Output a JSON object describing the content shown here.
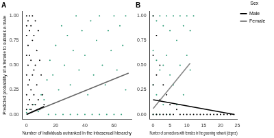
{
  "chart_data": [
    {
      "type": "scatter",
      "title": "A",
      "x_label": "Number of individuals outranked in the intrasexual hierarchy",
      "y_label": "Predicted probability of a female to outrank a male",
      "xlim": [
        -3,
        72
      ],
      "xticks": [
        0,
        20,
        40,
        60
      ],
      "ylim": [
        -0.05,
        1.05
      ],
      "yticks": [
        {
          "value": 0,
          "label": "0.00"
        },
        {
          "value": 0.25,
          "label": "0.25"
        },
        {
          "value": 0.5,
          "label": "0.50"
        },
        {
          "value": 0.75,
          "label": "0.75"
        },
        {
          "value": 1,
          "label": "1.00"
        }
      ],
      "grid": false,
      "series": [
        {
          "name": "Male",
          "type": "scatter",
          "marker": "circle",
          "color": "#000000",
          "x": [
            0,
            0,
            0,
            0,
            0,
            0,
            0,
            1,
            1,
            1,
            1,
            1,
            2,
            2,
            2,
            2,
            2,
            3,
            3,
            3,
            3,
            4,
            4,
            4,
            4,
            5,
            5,
            5,
            6,
            6,
            6,
            7,
            7,
            8,
            8,
            9,
            9,
            10,
            11,
            12
          ],
          "values": [
            1,
            0.9,
            0.8,
            0.6,
            0.4,
            0.2,
            0.05,
            0.95,
            0.7,
            0.5,
            0.3,
            0.1,
            1,
            0.85,
            0.6,
            0.35,
            0.15,
            0.9,
            0.55,
            0.25,
            0.05,
            1,
            0.75,
            0.4,
            0.1,
            0.8,
            0.45,
            0.2,
            0.95,
            0.5,
            0.1,
            0.65,
            0.3,
            0.85,
            0.15,
            0.55,
            0.05,
            0.4,
            0.2,
            0.1
          ]
        },
        {
          "name": "Female",
          "type": "scatter",
          "marker": "circle",
          "color": "#2e9e78",
          "x": [
            0,
            2,
            5,
            8,
            10,
            12,
            14,
            15,
            16,
            18,
            20,
            20,
            22,
            24,
            25,
            26,
            28,
            30,
            30,
            32,
            34,
            35,
            36,
            38,
            40,
            40,
            42,
            44,
            45,
            46,
            48,
            50,
            50,
            52,
            54,
            55,
            56,
            58,
            60,
            60,
            62,
            64,
            65,
            66,
            68,
            68
          ],
          "values": [
            0.02,
            0.05,
            0.1,
            0.03,
            0.2,
            0.15,
            0.35,
            0,
            0.55,
            0.4,
            0,
            0.7,
            0.25,
            0.9,
            0,
            0.5,
            0.8,
            0,
            0.3,
            0.65,
            1,
            0,
            0.45,
            0.85,
            0,
            0.6,
            0.2,
            0.95,
            0,
            0.4,
            0.75,
            0,
            1,
            0.5,
            0.3,
            0,
            0.85,
            0.65,
            0,
            1,
            0.45,
            0.9,
            0,
            0.7,
            0.25,
            1
          ]
        },
        {
          "name": "Male",
          "type": "line",
          "line_style": "solid",
          "color": "#000000",
          "x": [
            0,
            12
          ],
          "values": [
            0.0,
            0.08
          ]
        },
        {
          "name": "Female",
          "type": "line",
          "line_style": "solid",
          "color": "#666666",
          "x": [
            0,
            70
          ],
          "values": [
            0.0,
            0.42
          ]
        }
      ]
    },
    {
      "type": "scatter",
      "title": "B",
      "x_label": "Number of connections with females in the grooming network (degree)",
      "xlim": [
        -1,
        25
      ],
      "xticks": [
        0,
        5,
        10,
        15,
        20,
        25
      ],
      "ylim": [
        -0.05,
        1.05
      ],
      "yticks": [
        {
          "value": 0,
          "label": "0.00"
        },
        {
          "value": 0.25,
          "label": "0.25"
        },
        {
          "value": 0.5,
          "label": "0.50"
        },
        {
          "value": 0.75,
          "label": "0.75"
        },
        {
          "value": 1,
          "label": "1.00"
        }
      ],
      "grid": false,
      "legend": "right",
      "legend_title": "Sex",
      "series": [
        {
          "name": "Male",
          "type": "scatter",
          "marker": "circle",
          "color": "#000000",
          "x": [
            0,
            0,
            0,
            0,
            1,
            1,
            1,
            2,
            2,
            2,
            3,
            3,
            4,
            4,
            5,
            5,
            6,
            7,
            8,
            9,
            10,
            11,
            12,
            13,
            14,
            15,
            16,
            17,
            18,
            19,
            20,
            21,
            22,
            23,
            24
          ],
          "values": [
            1,
            0.6,
            0.3,
            0,
            0.8,
            0.4,
            0,
            0.5,
            0.15,
            0,
            0.3,
            0,
            0.2,
            0,
            0.1,
            0,
            0,
            0.05,
            0,
            0,
            0,
            0,
            0,
            0,
            0,
            0,
            0,
            0,
            0,
            0,
            0,
            0,
            0,
            0,
            0
          ]
        },
        {
          "name": "Female",
          "type": "scatter",
          "marker": "circle",
          "color": "#2e9e78",
          "x": [
            0,
            0,
            0,
            0,
            1,
            1,
            1,
            1,
            2,
            2,
            2,
            3,
            3,
            3,
            4,
            4,
            4,
            5,
            5,
            5,
            6,
            6,
            7,
            7,
            8,
            8,
            9,
            9,
            10,
            10,
            11,
            11,
            12
          ],
          "values": [
            1,
            0.65,
            0.3,
            0,
            0.95,
            0.55,
            0.2,
            0,
            1,
            0.45,
            0,
            0.9,
            0.5,
            0.1,
            1,
            0.6,
            0,
            0.85,
            0.4,
            0,
            1,
            0.3,
            0.75,
            0.1,
            1,
            0.5,
            0.9,
            0.2,
            1,
            0.6,
            0.85,
            0.45,
            1
          ]
        },
        {
          "name": "Male",
          "type": "line",
          "line_style": "solid",
          "color": "#000000",
          "x": [
            0,
            24
          ],
          "values": [
            0.15,
            0.0
          ]
        },
        {
          "name": "Female",
          "type": "line",
          "line_style": "solid",
          "color": "#888888",
          "x": [
            0,
            11
          ],
          "values": [
            0.06,
            0.52
          ]
        }
      ]
    }
  ]
}
